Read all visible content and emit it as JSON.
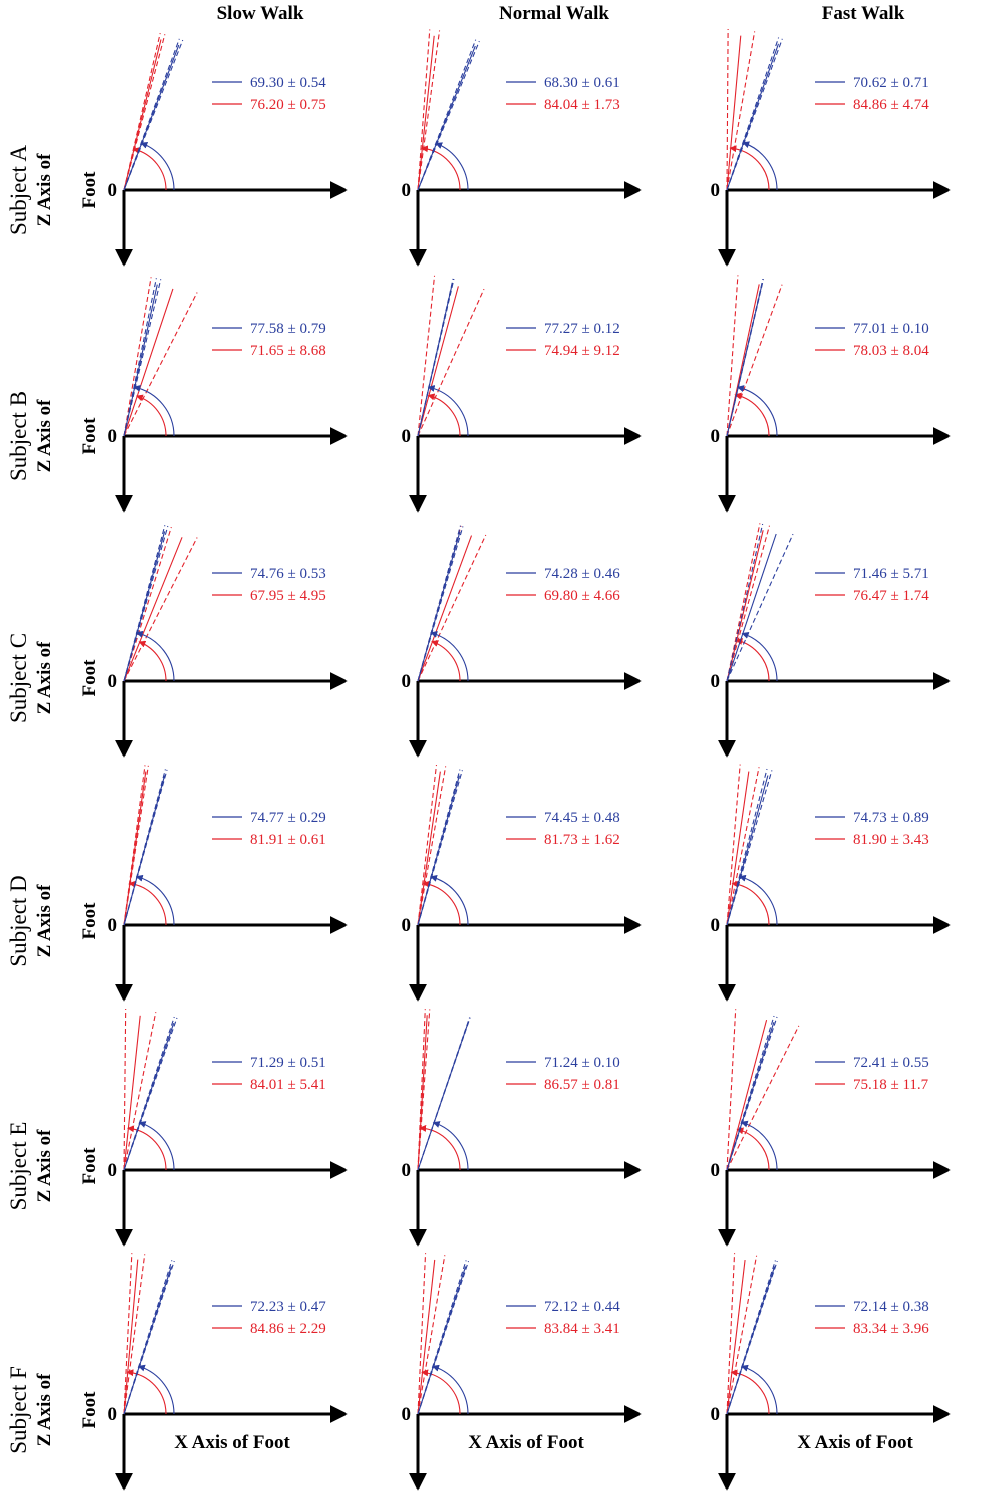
{
  "colors": {
    "blue": "#2b3f9e",
    "red": "#e3222b",
    "axis": "#000000"
  },
  "column_titles": [
    "Slow Walk",
    "Normal Walk",
    "Fast Walk"
  ],
  "row_labels": [
    "Subject A",
    "Subject B",
    "Subject C",
    "Subject D",
    "Subject E",
    "Subject F"
  ],
  "y_axis_label_line1": "Z Axis of",
  "y_axis_label_line2": "Foot",
  "x_axis_label": "X Axis of Foot",
  "origin_label": "0",
  "chart_data": {
    "type": "angle-diagram",
    "units": "degrees",
    "series_names": [
      "blue",
      "red"
    ],
    "grid": false,
    "panels": [
      {
        "subject": "Subject A",
        "condition": "Slow Walk",
        "blue": {
          "label": "69.30 ± 0.54",
          "mean": 69.3,
          "sd": 0.54,
          "lines": [
            68.6,
            69.3,
            69.9
          ]
        },
        "red": {
          "label": "76.20 ± 0.75",
          "mean": 76.2,
          "sd": 0.75,
          "lines": [
            75.3,
            76.2,
            77.0
          ]
        }
      },
      {
        "subject": "Subject A",
        "condition": "Normal Walk",
        "blue": {
          "label": "68.30 ± 0.61",
          "mean": 68.3,
          "sd": 0.61,
          "lines": [
            67.6,
            68.3,
            69.0
          ]
        },
        "red": {
          "label": "84.04 ± 1.73",
          "mean": 84.04,
          "sd": 1.73,
          "lines": [
            82.3,
            84.0,
            85.8
          ]
        }
      },
      {
        "subject": "Subject A",
        "condition": "Fast Walk",
        "blue": {
          "label": "70.62 ± 0.71",
          "mean": 70.62,
          "sd": 0.71,
          "lines": [
            69.9,
            70.6,
            71.3
          ]
        },
        "red": {
          "label": "84.86 ± 4.74",
          "mean": 84.86,
          "sd": 4.74,
          "lines": [
            80.1,
            84.9,
            89.6
          ]
        }
      },
      {
        "subject": "Subject B",
        "condition": "Slow Walk",
        "blue": {
          "label": "77.58 ± 0.79",
          "mean": 77.58,
          "sd": 0.79,
          "lines": [
            76.8,
            77.6,
            78.4
          ]
        },
        "red": {
          "label": "71.65 ± 8.68",
          "mean": 71.65,
          "sd": 8.68,
          "lines": [
            63.0,
            71.6,
            80.3
          ]
        }
      },
      {
        "subject": "Subject B",
        "condition": "Normal Walk",
        "blue": {
          "label": "77.27 ± 0.12",
          "mean": 77.27,
          "sd": 0.12,
          "lines": [
            77.1,
            77.3,
            77.4
          ]
        },
        "red": {
          "label": "74.94 ± 9.12",
          "mean": 74.94,
          "sd": 9.12,
          "lines": [
            65.8,
            74.9,
            84.1
          ]
        }
      },
      {
        "subject": "Subject B",
        "condition": "Fast Walk",
        "blue": {
          "label": "77.01 ± 0.10",
          "mean": 77.01,
          "sd": 0.1,
          "lines": [
            76.9,
            77.0,
            77.1
          ]
        },
        "red": {
          "label": "78.03 ± 8.04",
          "mean": 78.03,
          "sd": 8.04,
          "lines": [
            70.0,
            78.0,
            86.1
          ]
        }
      },
      {
        "subject": "Subject C",
        "condition": "Slow Walk",
        "blue": {
          "label": "74.76 ± 0.53",
          "mean": 74.76,
          "sd": 0.53,
          "lines": [
            74.2,
            74.8,
            75.3
          ]
        },
        "red": {
          "label": "67.95 ± 4.95",
          "mean": 67.95,
          "sd": 4.95,
          "lines": [
            63.0,
            68.0,
            72.9
          ]
        }
      },
      {
        "subject": "Subject C",
        "condition": "Normal Walk",
        "blue": {
          "label": "74.28 ± 0.46",
          "mean": 74.28,
          "sd": 0.46,
          "lines": [
            73.8,
            74.3,
            74.7
          ]
        },
        "red": {
          "label": "69.80 ± 4.66",
          "mean": 69.8,
          "sd": 4.66,
          "lines": [
            65.1,
            69.8,
            74.5
          ]
        }
      },
      {
        "subject": "Subject C",
        "condition": "Fast Walk",
        "blue": {
          "label": "71.46 ± 5.71",
          "mean": 71.46,
          "sd": 5.71,
          "lines": [
            65.8,
            71.5,
            77.2
          ]
        },
        "red": {
          "label": "76.47 ± 1.74",
          "mean": 76.47,
          "sd": 1.74,
          "lines": [
            74.7,
            76.5,
            78.2
          ]
        }
      },
      {
        "subject": "Subject D",
        "condition": "Slow Walk",
        "blue": {
          "label": "74.77 ± 0.29",
          "mean": 74.77,
          "sd": 0.29,
          "lines": [
            74.5,
            74.8,
            75.1
          ]
        },
        "red": {
          "label": "81.91 ± 0.61",
          "mean": 81.91,
          "sd": 0.61,
          "lines": [
            81.3,
            81.9,
            82.5
          ]
        }
      },
      {
        "subject": "Subject D",
        "condition": "Normal Walk",
        "blue": {
          "label": "74.45 ± 0.48",
          "mean": 74.45,
          "sd": 0.48,
          "lines": [
            74.0,
            74.5,
            74.9
          ]
        },
        "red": {
          "label": "81.73 ± 1.62",
          "mean": 81.73,
          "sd": 1.62,
          "lines": [
            80.1,
            81.7,
            83.4
          ]
        }
      },
      {
        "subject": "Subject D",
        "condition": "Fast Walk",
        "blue": {
          "label": "74.73 ± 0.89",
          "mean": 74.73,
          "sd": 0.89,
          "lines": [
            73.8,
            74.7,
            75.6
          ]
        },
        "red": {
          "label": "81.90 ± 3.43",
          "mean": 81.9,
          "sd": 3.43,
          "lines": [
            78.5,
            81.9,
            85.3
          ]
        }
      },
      {
        "subject": "Subject E",
        "condition": "Slow Walk",
        "blue": {
          "label": "71.29 ± 0.51",
          "mean": 71.29,
          "sd": 0.51,
          "lines": [
            70.8,
            71.3,
            71.8
          ]
        },
        "red": {
          "label": "84.01 ± 5.41",
          "mean": 84.01,
          "sd": 5.41,
          "lines": [
            78.6,
            84.0,
            89.4
          ]
        }
      },
      {
        "subject": "Subject E",
        "condition": "Normal Walk",
        "blue": {
          "label": "71.24 ± 0.10",
          "mean": 71.24,
          "sd": 0.1,
          "lines": [
            71.1,
            71.2,
            71.3
          ]
        },
        "red": {
          "label": "86.57 ± 0.81",
          "mean": 86.57,
          "sd": 0.81,
          "lines": [
            85.8,
            86.6,
            87.4
          ]
        }
      },
      {
        "subject": "Subject E",
        "condition": "Fast Walk",
        "blue": {
          "label": "72.41 ± 0.55",
          "mean": 72.41,
          "sd": 0.55,
          "lines": [
            71.9,
            72.4,
            73.0
          ]
        },
        "red": {
          "label": "75.18 ± 11.7",
          "mean": 75.18,
          "sd": 11.7,
          "lines": [
            63.5,
            75.2,
            86.9
          ]
        }
      },
      {
        "subject": "Subject F",
        "condition": "Slow Walk",
        "blue": {
          "label": "72.23 ± 0.47",
          "mean": 72.23,
          "sd": 0.47,
          "lines": [
            71.8,
            72.2,
            72.7
          ]
        },
        "red": {
          "label": "84.86 ± 2.29",
          "mean": 84.86,
          "sd": 2.29,
          "lines": [
            82.6,
            84.9,
            87.2
          ]
        }
      },
      {
        "subject": "Subject F",
        "condition": "Normal Walk",
        "blue": {
          "label": "72.12 ± 0.44",
          "mean": 72.12,
          "sd": 0.44,
          "lines": [
            71.7,
            72.1,
            72.6
          ]
        },
        "red": {
          "label": "83.84 ± 3.41",
          "mean": 83.84,
          "sd": 3.41,
          "lines": [
            80.4,
            83.8,
            87.3
          ]
        }
      },
      {
        "subject": "Subject F",
        "condition": "Fast Walk",
        "blue": {
          "label": "72.14 ± 0.38",
          "mean": 72.14,
          "sd": 0.38,
          "lines": [
            71.8,
            72.1,
            72.5
          ]
        },
        "red": {
          "label": "83.34 ± 3.96",
          "mean": 83.34,
          "sd": 3.96,
          "lines": [
            79.4,
            83.3,
            87.3
          ]
        }
      }
    ]
  }
}
